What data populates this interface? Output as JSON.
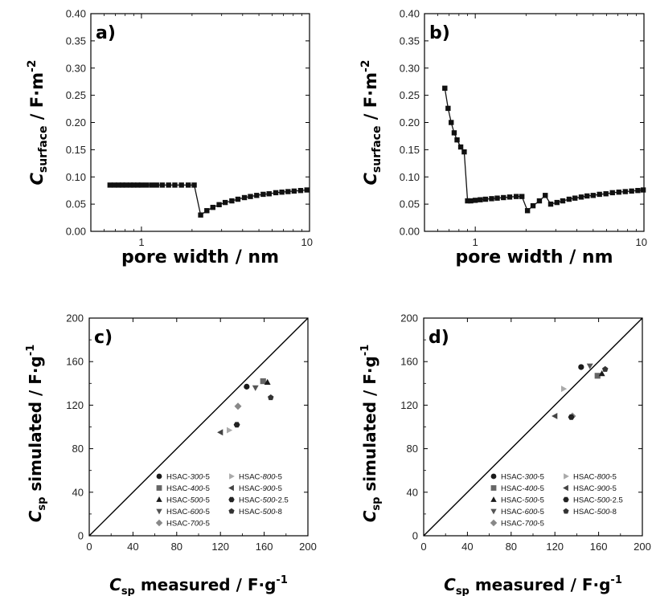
{
  "chart_data": [
    {
      "type": "scatter",
      "panel_label": "a)",
      "ylabel_main": "C",
      "ylabel_sub": "surface",
      "ylabel_unit": " / F·m",
      "ylabel_sup": "-2",
      "xlabel": "pore width / nm",
      "xscale": "log",
      "xlim": [
        0.5,
        10
      ],
      "ylim": [
        0,
        0.4
      ],
      "xticks": [
        {
          "v": 1,
          "label": "1"
        },
        {
          "v": 10,
          "label": "10"
        }
      ],
      "yticks": [
        "0.00",
        "0.05",
        "0.10",
        "0.15",
        "0.20",
        "0.25",
        "0.30",
        "0.35",
        "0.40"
      ],
      "series": [
        {
          "marker": "square",
          "color": "#111111",
          "x": [
            0.65,
            0.69,
            0.73,
            0.77,
            0.81,
            0.86,
            0.9,
            0.95,
            1.0,
            1.07,
            1.15,
            1.23,
            1.33,
            1.45,
            1.58,
            1.73,
            1.9,
            2.06,
            2.25,
            2.45,
            2.66,
            2.9,
            3.15,
            3.45,
            3.75,
            4.1,
            4.45,
            4.85,
            5.3,
            5.75,
            6.3,
            6.85,
            7.45,
            8.1,
            8.85,
            9.65
          ],
          "y": [
            0.085,
            0.085,
            0.085,
            0.085,
            0.085,
            0.085,
            0.085,
            0.085,
            0.085,
            0.085,
            0.085,
            0.085,
            0.085,
            0.085,
            0.085,
            0.085,
            0.085,
            0.085,
            0.03,
            0.038,
            0.044,
            0.049,
            0.053,
            0.056,
            0.059,
            0.062,
            0.064,
            0.066,
            0.068,
            0.069,
            0.071,
            0.072,
            0.073,
            0.074,
            0.075,
            0.076
          ]
        }
      ]
    },
    {
      "type": "scatter",
      "panel_label": "b)",
      "ylabel_main": "C",
      "ylabel_sub": "surface",
      "ylabel_unit": " / F·m",
      "ylabel_sup": "-2",
      "xlabel": "pore width / nm",
      "xscale": "log",
      "xlim": [
        0.5,
        10
      ],
      "ylim": [
        0,
        0.4
      ],
      "xticks": [
        {
          "v": 1,
          "label": "1"
        },
        {
          "v": 10,
          "label": "10"
        }
      ],
      "yticks": [
        "0.00",
        "0.05",
        "0.10",
        "0.15",
        "0.20",
        "0.25",
        "0.30",
        "0.35",
        "0.40"
      ],
      "series": [
        {
          "marker": "square",
          "color": "#111111",
          "x": [
            0.66,
            0.69,
            0.72,
            0.75,
            0.78,
            0.82,
            0.86,
            0.9,
            0.94,
            1.0,
            1.07,
            1.15,
            1.25,
            1.35,
            1.47,
            1.6,
            1.75,
            1.89,
            2.04,
            2.2,
            2.4,
            2.6,
            2.8,
            3.05,
            3.3,
            3.6,
            3.9,
            4.25,
            4.6,
            5.0,
            5.45,
            5.95,
            6.5,
            7.1,
            7.75,
            8.45,
            9.2,
            9.9
          ],
          "y": [
            0.263,
            0.226,
            0.2,
            0.181,
            0.168,
            0.155,
            0.146,
            0.056,
            0.056,
            0.057,
            0.058,
            0.059,
            0.06,
            0.061,
            0.062,
            0.063,
            0.064,
            0.064,
            0.038,
            0.047,
            0.056,
            0.066,
            0.05,
            0.053,
            0.056,
            0.059,
            0.061,
            0.063,
            0.065,
            0.066,
            0.068,
            0.069,
            0.071,
            0.072,
            0.073,
            0.074,
            0.075,
            0.076
          ]
        }
      ]
    },
    {
      "type": "scatter",
      "panel_label": "c)",
      "ylabel_main": "C",
      "ylabel_sub": "sp",
      "ylabel_unit": " simulated / F·g",
      "ylabel_sup": "-1",
      "xlabel_main": "C",
      "xlabel_sub": "sp",
      "xlabel_unit": " measured / F·g",
      "xlabel_sup": "-1",
      "xlim": [
        0,
        200
      ],
      "ylim": [
        0,
        200
      ],
      "ticks": [
        "0",
        "40",
        "80",
        "120",
        "160",
        "200"
      ],
      "diagonal": true,
      "series": [
        {
          "name": "HSAC-300-5",
          "label_pre": "HSAC-",
          "label_ital": "300",
          "label_post": "-5",
          "marker": "circle",
          "color": "#1a1a1a",
          "x": [
            144
          ],
          "y": [
            137
          ]
        },
        {
          "name": "HSAC-400-5",
          "label_pre": "HSAC-",
          "label_ital": "400",
          "label_post": "-5",
          "marker": "square",
          "color": "#666666",
          "x": [
            159
          ],
          "y": [
            142
          ]
        },
        {
          "name": "HSAC-500-5",
          "label_pre": "HSAC-",
          "label_ital": "500",
          "label_post": "-5",
          "marker": "triangle-up",
          "color": "#1a1a1a",
          "x": [
            163
          ],
          "y": [
            141
          ]
        },
        {
          "name": "HSAC-600-5",
          "label_pre": "HSAC-",
          "label_ital": "600",
          "label_post": "-5",
          "marker": "triangle-down",
          "color": "#555555",
          "x": [
            152
          ],
          "y": [
            136
          ]
        },
        {
          "name": "HSAC-700-5",
          "label_pre": "HSAC-",
          "label_ital": "700",
          "label_post": "-5",
          "marker": "diamond",
          "color": "#888888",
          "x": [
            136
          ],
          "y": [
            119
          ]
        },
        {
          "name": "HSAC-800-5",
          "label_pre": "HSAC-",
          "label_ital": "800",
          "label_post": "-5",
          "marker": "triangle-right",
          "color": "#aaaaaa",
          "x": [
            128
          ],
          "y": [
            97
          ]
        },
        {
          "name": "HSAC-900-5",
          "label_pre": "HSAC-",
          "label_ital": "900",
          "label_post": "-5",
          "marker": "triangle-left",
          "color": "#444444",
          "x": [
            120
          ],
          "y": [
            95
          ]
        },
        {
          "name": "HSAC-500-2.5",
          "label_pre": "HSAC-",
          "label_ital": "500",
          "label_post": "-2.5",
          "marker": "hexagon",
          "color": "#222222",
          "x": [
            135
          ],
          "y": [
            102
          ]
        },
        {
          "name": "HSAC-500-8",
          "label_pre": "HSAC-",
          "label_ital": "500",
          "label_post": "-8",
          "marker": "pentagon",
          "color": "#333333",
          "x": [
            166
          ],
          "y": [
            127
          ]
        }
      ]
    },
    {
      "type": "scatter",
      "panel_label": "d)",
      "ylabel_main": "C",
      "ylabel_sub": "sp",
      "ylabel_unit": " simulated / F·g",
      "ylabel_sup": "-1",
      "xlabel_main": "C",
      "xlabel_sub": "sp",
      "xlabel_unit": " measured / F·g",
      "xlabel_sup": "-1",
      "xlim": [
        0,
        200
      ],
      "ylim": [
        0,
        200
      ],
      "ticks": [
        "0",
        "40",
        "80",
        "120",
        "160",
        "200"
      ],
      "diagonal": true,
      "series": [
        {
          "name": "HSAC-300-5",
          "label_pre": "HSAC-",
          "label_ital": "300",
          "label_post": "-5",
          "marker": "circle",
          "color": "#1a1a1a",
          "x": [
            144
          ],
          "y": [
            155
          ]
        },
        {
          "name": "HSAC-400-5",
          "label_pre": "HSAC-",
          "label_ital": "400",
          "label_post": "-5",
          "marker": "square",
          "color": "#666666",
          "x": [
            159
          ],
          "y": [
            147
          ]
        },
        {
          "name": "HSAC-500-5",
          "label_pre": "HSAC-",
          "label_ital": "500",
          "label_post": "-5",
          "marker": "triangle-up",
          "color": "#1a1a1a",
          "x": [
            163
          ],
          "y": [
            149
          ]
        },
        {
          "name": "HSAC-600-5",
          "label_pre": "HSAC-",
          "label_ital": "600",
          "label_post": "-5",
          "marker": "triangle-down",
          "color": "#555555",
          "x": [
            152
          ],
          "y": [
            156
          ]
        },
        {
          "name": "HSAC-700-5",
          "label_pre": "HSAC-",
          "label_ital": "700",
          "label_post": "-5",
          "marker": "diamond",
          "color": "#888888",
          "x": [
            136
          ],
          "y": [
            110
          ]
        },
        {
          "name": "HSAC-800-5",
          "label_pre": "HSAC-",
          "label_ital": "800",
          "label_post": "-5",
          "marker": "triangle-right",
          "color": "#aaaaaa",
          "x": [
            128
          ],
          "y": [
            135
          ]
        },
        {
          "name": "HSAC-900-5",
          "label_pre": "HSAC-",
          "label_ital": "900",
          "label_post": "-5",
          "marker": "triangle-left",
          "color": "#444444",
          "x": [
            120
          ],
          "y": [
            110
          ]
        },
        {
          "name": "HSAC-500-2.5",
          "label_pre": "HSAC-",
          "label_ital": "500",
          "label_post": "-2.5",
          "marker": "hexagon",
          "color": "#222222",
          "x": [
            135
          ],
          "y": [
            109
          ]
        },
        {
          "name": "HSAC-500-8",
          "label_pre": "HSAC-",
          "label_ital": "500",
          "label_post": "-8",
          "marker": "pentagon",
          "color": "#333333",
          "x": [
            166
          ],
          "y": [
            153
          ]
        }
      ]
    }
  ]
}
